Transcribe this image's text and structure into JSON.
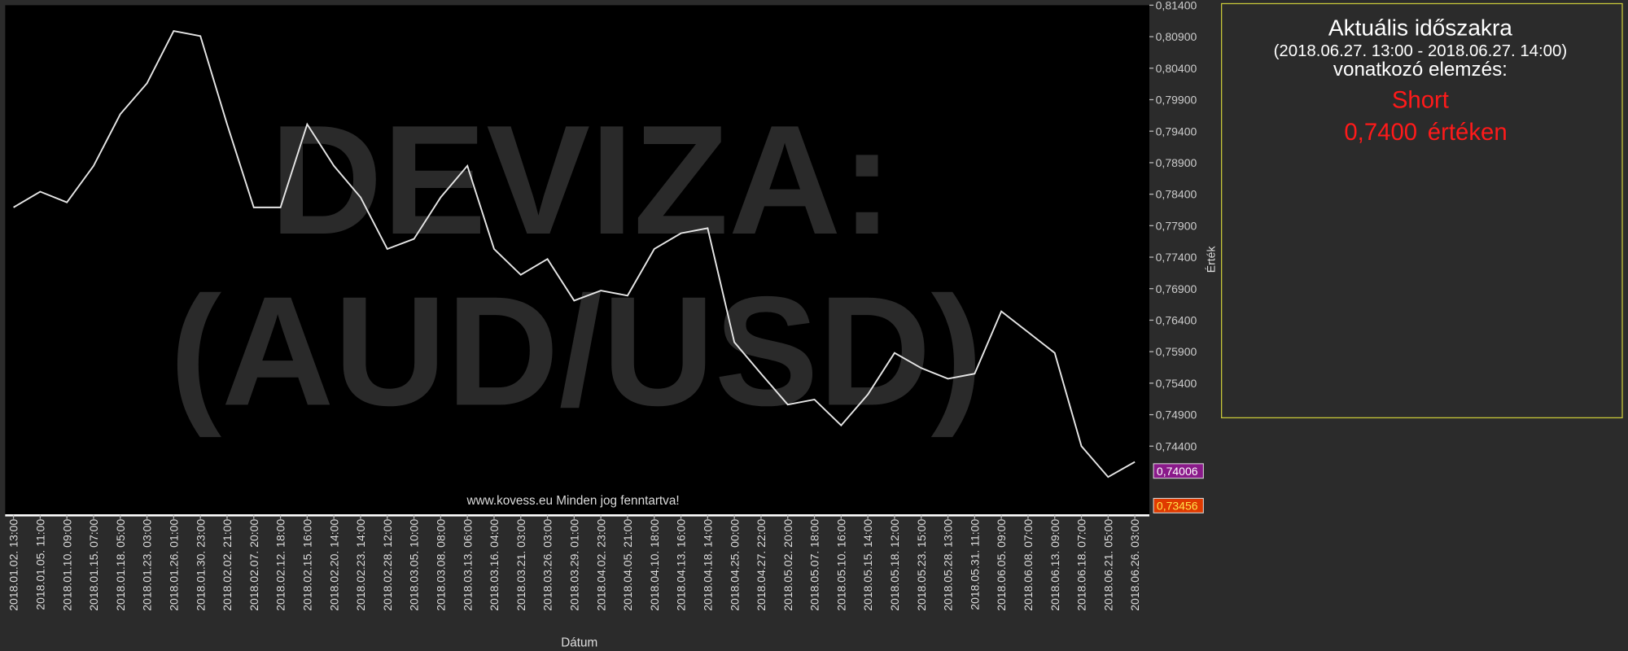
{
  "chart_data": {
    "type": "line",
    "watermark": [
      "DEVIZA:",
      "(AUD/USD)"
    ],
    "copyright": "www.kovess.eu Minden jog fenntartva!",
    "xlabel": "Dátum",
    "ylabel": "Érték",
    "grid": false,
    "categories": [
      "2018.01.02. 13:00",
      "2018.01.05. 11:00",
      "2018.01.10. 09:00",
      "2018.01.15. 07:00",
      "2018.01.18. 05:00",
      "2018.01.23. 03:00",
      "2018.01.26. 01:00",
      "2018.01.30. 23:00",
      "2018.02.02. 21:00",
      "2018.02.07. 20:00",
      "2018.02.12. 18:00",
      "2018.02.15. 16:00",
      "2018.02.20. 14:00",
      "2018.02.23. 14:00",
      "2018.02.28. 12:00",
      "2018.03.05. 10:00",
      "2018.03.08. 08:00",
      "2018.03.13. 06:00",
      "2018.03.16. 04:00",
      "2018.03.21. 03:00",
      "2018.03.26. 03:00",
      "2018.03.29. 01:00",
      "2018.04.02. 23:00",
      "2018.04.05. 21:00",
      "2018.04.10. 18:00",
      "2018.04.13. 16:00",
      "2018.04.18. 14:00",
      "2018.04.25. 00:00",
      "2018.04.27. 22:00",
      "2018.05.02. 20:00",
      "2018.05.07. 18:00",
      "2018.05.10. 16:00",
      "2018.05.15. 14:00",
      "2018.05.18. 12:00",
      "2018.05.23. 15:00",
      "2018.05.28. 13:00",
      "2018.05.31. 11:00",
      "2018.06.05. 09:00",
      "2018.06.08. 07:00",
      "2018.06.13. 09:00",
      "2018.06.18. 07:00",
      "2018.06.21. 05:00",
      "2018.06.26. 03:00"
    ],
    "series": [
      {
        "color": "#e6e6e6",
        "values": [
          0.7819,
          0.7844,
          0.7827,
          0.7885,
          0.7967,
          0.8016,
          0.8099,
          0.8091,
          0.7951,
          0.7819,
          0.7819,
          0.7951,
          0.7885,
          0.7835,
          0.7753,
          0.7769,
          0.7835,
          0.7885,
          0.7753,
          0.7712,
          0.7737,
          0.7671,
          0.7687,
          0.7679,
          0.7753,
          0.7778,
          0.7786,
          0.7605,
          0.7555,
          0.7506,
          0.7514,
          0.7473,
          0.7522,
          0.7588,
          0.7564,
          0.7547,
          0.7555,
          0.7654,
          0.7621,
          0.7588,
          0.744,
          0.7391,
          0.7415
        ]
      }
    ],
    "ylim": [
      0.7331,
      0.814
    ],
    "yticks": [
      {
        "value": 0.814,
        "label": "0,81400"
      },
      {
        "value": 0.809,
        "label": "0,80900"
      },
      {
        "value": 0.804,
        "label": "0,80400"
      },
      {
        "value": 0.799,
        "label": "0,79900"
      },
      {
        "value": 0.794,
        "label": "0,79400"
      },
      {
        "value": 0.789,
        "label": "0,78900"
      },
      {
        "value": 0.784,
        "label": "0,78400"
      },
      {
        "value": 0.779,
        "label": "0,77900"
      },
      {
        "value": 0.774,
        "label": "0,77400"
      },
      {
        "value": 0.769,
        "label": "0,76900"
      },
      {
        "value": 0.764,
        "label": "0,76400"
      },
      {
        "value": 0.759,
        "label": "0,75900"
      },
      {
        "value": 0.754,
        "label": "0,75400"
      },
      {
        "value": 0.749,
        "label": "0,74900"
      },
      {
        "value": 0.744,
        "label": "0,74400"
      }
    ],
    "price_markers": [
      {
        "value": 0.74006,
        "label": "0,74006",
        "color": "#8a1a8a"
      },
      {
        "value": 0.73456,
        "label": "0,73456",
        "color": "#e03a00"
      }
    ]
  },
  "panel": {
    "title": "Aktuális időszakra",
    "period": "(2018.06.27. 13:00 - 2018.06.27. 14:00)",
    "subtitle": "vonatkozó elemzés:",
    "signal": "Short",
    "price": "0,7400",
    "price_suffix": "értéken"
  }
}
